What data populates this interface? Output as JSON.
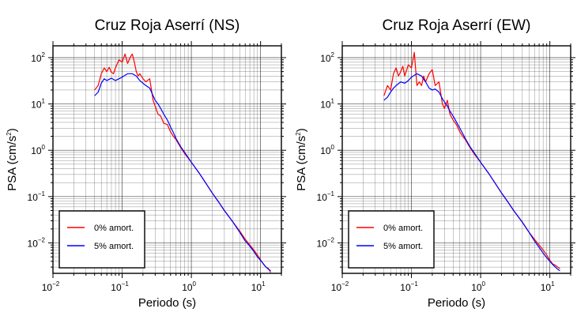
{
  "chart_data": [
    {
      "type": "line",
      "title": "Cruz Roja Aserrí (NS)",
      "xlabel": "Periodo (s)",
      "ylabel": "PSA (cm/s",
      "ylabel_sup": "2",
      "ylabel_close": ")",
      "xscale": "log",
      "yscale": "log",
      "xlim": [
        0.01,
        20
      ],
      "ylim": [
        0.0022,
        180
      ],
      "grid": true,
      "legend_position": "bottom-left",
      "x_ticks": [
        {
          "base": "10",
          "exp": "−2",
          "value": 0.01
        },
        {
          "base": "10",
          "exp": "−1",
          "value": 0.1
        },
        {
          "base": "10",
          "exp": "0",
          "value": 1
        },
        {
          "base": "10",
          "exp": "1",
          "value": 10
        }
      ],
      "y_ticks": [
        {
          "base": "10",
          "exp": "−2",
          "value": 0.01
        },
        {
          "base": "10",
          "exp": "−1",
          "value": 0.1
        },
        {
          "base": "10",
          "exp": "0",
          "value": 1
        },
        {
          "base": "10",
          "exp": "1",
          "value": 10
        },
        {
          "base": "10",
          "exp": "2",
          "value": 100
        }
      ],
      "series": [
        {
          "name": "0% amort.",
          "color": "#ff0000",
          "x": [
            0.04,
            0.045,
            0.05,
            0.055,
            0.06,
            0.065,
            0.07,
            0.075,
            0.08,
            0.09,
            0.1,
            0.11,
            0.12,
            0.13,
            0.14,
            0.15,
            0.16,
            0.17,
            0.18,
            0.2,
            0.22,
            0.25,
            0.28,
            0.3,
            0.33,
            0.36,
            0.4,
            0.45,
            0.5,
            0.55,
            0.6,
            0.7,
            0.8,
            1.0,
            1.3,
            1.6,
            2,
            2.5,
            3,
            4,
            5,
            6,
            7,
            8,
            9,
            10,
            11,
            12,
            13,
            14
          ],
          "y": [
            20,
            25,
            45,
            60,
            50,
            62,
            48,
            45,
            60,
            90,
            80,
            120,
            75,
            100,
            120,
            80,
            50,
            40,
            45,
            35,
            30,
            35,
            12,
            9,
            6,
            5.5,
            3.8,
            3.6,
            2.5,
            2.0,
            1.7,
            1.15,
            0.85,
            0.55,
            0.32,
            0.2,
            0.12,
            0.075,
            0.05,
            0.028,
            0.018,
            0.012,
            0.009,
            0.007,
            0.0055,
            0.0043,
            0.0035,
            0.003,
            0.0028,
            0.0023
          ]
        },
        {
          "name": "5% amort.",
          "color": "#0000ff",
          "x": [
            0.04,
            0.045,
            0.05,
            0.055,
            0.06,
            0.07,
            0.08,
            0.09,
            0.1,
            0.12,
            0.14,
            0.16,
            0.18,
            0.2,
            0.22,
            0.25,
            0.28,
            0.3,
            0.33,
            0.36,
            0.4,
            0.45,
            0.5,
            0.55,
            0.6,
            0.7,
            0.8,
            1.0,
            1.3,
            1.6,
            2,
            2.5,
            3,
            4,
            5,
            6,
            7,
            8,
            9,
            10,
            11,
            12,
            13,
            14
          ],
          "y": [
            15,
            18,
            28,
            35,
            32,
            36,
            32,
            35,
            38,
            45,
            45,
            40,
            32,
            28,
            25,
            22,
            15,
            12,
            10,
            8,
            6,
            4.5,
            3.2,
            2.4,
            1.8,
            1.2,
            0.9,
            0.55,
            0.32,
            0.2,
            0.12,
            0.075,
            0.05,
            0.028,
            0.017,
            0.011,
            0.0085,
            0.0065,
            0.005,
            0.0042,
            0.0035,
            0.003,
            0.0027,
            0.0025
          ]
        }
      ]
    },
    {
      "type": "line",
      "title": "Cruz Roja Aserrí (EW)",
      "xlabel": "Periodo (s)",
      "ylabel": "PSA (cm/s",
      "ylabel_sup": "2",
      "ylabel_close": ")",
      "xscale": "log",
      "yscale": "log",
      "xlim": [
        0.01,
        20
      ],
      "ylim": [
        0.0022,
        180
      ],
      "grid": true,
      "legend_position": "bottom-left",
      "x_ticks": [
        {
          "base": "10",
          "exp": "−2",
          "value": 0.01
        },
        {
          "base": "10",
          "exp": "−1",
          "value": 0.1
        },
        {
          "base": "10",
          "exp": "0",
          "value": 1
        },
        {
          "base": "10",
          "exp": "1",
          "value": 10
        }
      ],
      "y_ticks": [
        {
          "base": "10",
          "exp": "−2",
          "value": 0.01
        },
        {
          "base": "10",
          "exp": "−1",
          "value": 0.1
        },
        {
          "base": "10",
          "exp": "0",
          "value": 1
        },
        {
          "base": "10",
          "exp": "1",
          "value": 10
        },
        {
          "base": "10",
          "exp": "2",
          "value": 100
        }
      ],
      "series": [
        {
          "name": "0% amort.",
          "color": "#ff0000",
          "x": [
            0.04,
            0.045,
            0.05,
            0.055,
            0.06,
            0.065,
            0.07,
            0.075,
            0.08,
            0.09,
            0.1,
            0.11,
            0.12,
            0.13,
            0.14,
            0.15,
            0.16,
            0.18,
            0.2,
            0.22,
            0.25,
            0.28,
            0.3,
            0.33,
            0.36,
            0.4,
            0.45,
            0.5,
            0.55,
            0.6,
            0.7,
            0.8,
            1.0,
            1.3,
            1.6,
            2,
            2.5,
            3,
            4,
            5,
            6,
            7,
            8,
            9,
            10,
            11,
            12,
            13,
            14
          ],
          "y": [
            15,
            25,
            20,
            45,
            60,
            40,
            50,
            65,
            40,
            70,
            60,
            130,
            25,
            30,
            25,
            40,
            30,
            45,
            55,
            25,
            30,
            10,
            8,
            12,
            6,
            4.5,
            3.5,
            2.5,
            2.0,
            1.7,
            1.15,
            0.85,
            0.55,
            0.32,
            0.2,
            0.12,
            0.075,
            0.05,
            0.028,
            0.017,
            0.012,
            0.009,
            0.007,
            0.0055,
            0.0042,
            0.0035,
            0.0033,
            0.003,
            0.0028
          ]
        },
        {
          "name": "5% amort.",
          "color": "#0000ff",
          "x": [
            0.04,
            0.045,
            0.05,
            0.055,
            0.06,
            0.07,
            0.08,
            0.09,
            0.1,
            0.12,
            0.14,
            0.16,
            0.18,
            0.2,
            0.22,
            0.25,
            0.28,
            0.3,
            0.33,
            0.36,
            0.4,
            0.45,
            0.5,
            0.55,
            0.6,
            0.7,
            0.8,
            1.0,
            1.3,
            1.6,
            2,
            2.5,
            3,
            4,
            5,
            6,
            7,
            8,
            9,
            10,
            11,
            12,
            13,
            14
          ],
          "y": [
            12,
            14,
            18,
            22,
            25,
            30,
            28,
            32,
            38,
            45,
            40,
            30,
            22,
            20,
            21,
            18,
            13,
            11,
            9,
            7,
            5.5,
            4,
            3,
            2.3,
            1.8,
            1.2,
            0.9,
            0.55,
            0.32,
            0.2,
            0.12,
            0.075,
            0.05,
            0.028,
            0.017,
            0.011,
            0.008,
            0.006,
            0.0048,
            0.004,
            0.0034,
            0.003,
            0.0027,
            0.0025
          ]
        }
      ]
    }
  ]
}
